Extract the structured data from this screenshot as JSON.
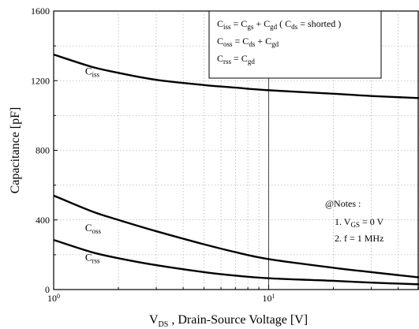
{
  "chart_data": {
    "type": "line",
    "xscale": "log",
    "xlim": [
      1,
      50
    ],
    "ylim": [
      0,
      1600
    ],
    "xlabel_parts": {
      "prefix": "V",
      "sub": "DS",
      "rest": " ,   Drain-Source Voltage [V]"
    },
    "ylabel": "Capacitance   [pF]",
    "x_tick_labels": [
      {
        "x": 1,
        "base": "10",
        "exp": "0"
      },
      {
        "x": 10,
        "base": "10",
        "exp": "1"
      }
    ],
    "y_ticks": [
      0,
      400,
      800,
      1200,
      1600
    ],
    "y_tick_labels": [
      "0",
      "400",
      "800",
      "1200",
      "1600"
    ],
    "grid": true,
    "reference_line_x": 10,
    "series": [
      {
        "main": "C",
        "sub": "iss",
        "x": [
          1,
          1.5,
          2,
          3,
          5,
          7,
          10,
          20,
          30,
          50
        ],
        "values": [
          1350,
          1280,
          1245,
          1205,
          1175,
          1160,
          1145,
          1125,
          1112,
          1100
        ]
      },
      {
        "main": "C",
        "sub": "oss",
        "x": [
          1,
          1.5,
          2,
          3,
          5,
          7,
          10,
          20,
          30,
          50
        ],
        "values": [
          540,
          450,
          400,
          335,
          260,
          215,
          175,
          125,
          100,
          70
        ]
      },
      {
        "main": "C",
        "sub": "rss",
        "x": [
          1,
          1.5,
          2,
          3,
          5,
          7,
          10,
          20,
          30,
          50
        ],
        "values": [
          285,
          215,
          180,
          140,
          100,
          80,
          65,
          50,
          40,
          30
        ]
      }
    ],
    "equations": [
      {
        "parts": [
          [
            "C",
            ""
          ],
          [
            "iss",
            "sub"
          ],
          [
            " = C",
            ""
          ],
          [
            "gs",
            "sub"
          ],
          [
            " + C",
            ""
          ],
          [
            "gd",
            "sub"
          ],
          [
            "   ( C",
            ""
          ],
          [
            "ds",
            "sub"
          ],
          [
            " = shorted )",
            ""
          ]
        ]
      },
      {
        "parts": [
          [
            "C",
            ""
          ],
          [
            "oss",
            "sub"
          ],
          [
            " = C",
            ""
          ],
          [
            "ds",
            "sub"
          ],
          [
            " + C",
            ""
          ],
          [
            "gd",
            "sub"
          ]
        ]
      },
      {
        "parts": [
          [
            "C",
            ""
          ],
          [
            "rss",
            "sub"
          ],
          [
            " = C",
            ""
          ],
          [
            "gd",
            "sub"
          ]
        ]
      }
    ],
    "notes": {
      "title": "@Notes :",
      "items": [
        {
          "parts": [
            [
              "1.  V",
              ""
            ],
            [
              "GS",
              "sub"
            ],
            [
              " = 0  V",
              ""
            ]
          ]
        },
        {
          "parts": [
            [
              "2.  f  = 1 MHz",
              ""
            ]
          ]
        }
      ]
    }
  }
}
